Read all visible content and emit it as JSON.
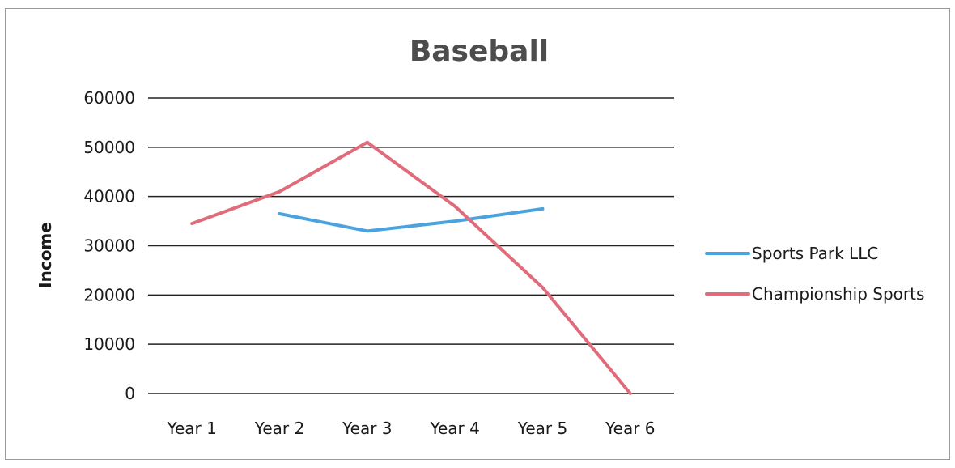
{
  "chart_data": {
    "type": "line",
    "title": "Baseball",
    "xlabel": "",
    "ylabel": "Income",
    "categories": [
      "Year 1",
      "Year 2",
      "Year 3",
      "Year 4",
      "Year 5",
      "Year 6"
    ],
    "ylim": [
      0,
      60000
    ],
    "yticks": [
      "0",
      "10000",
      "20000",
      "30000",
      "40000",
      "50000",
      "60000"
    ],
    "grid": true,
    "legend_position": "right",
    "series": [
      {
        "name": "Sports Park LLC",
        "color": "#4aa3df",
        "values": [
          null,
          36500,
          33000,
          35000,
          37500,
          null
        ]
      },
      {
        "name": "Championship Sports",
        "color": "#e06b7a",
        "values": [
          34500,
          41000,
          51000,
          38000,
          21500,
          0
        ]
      }
    ]
  }
}
